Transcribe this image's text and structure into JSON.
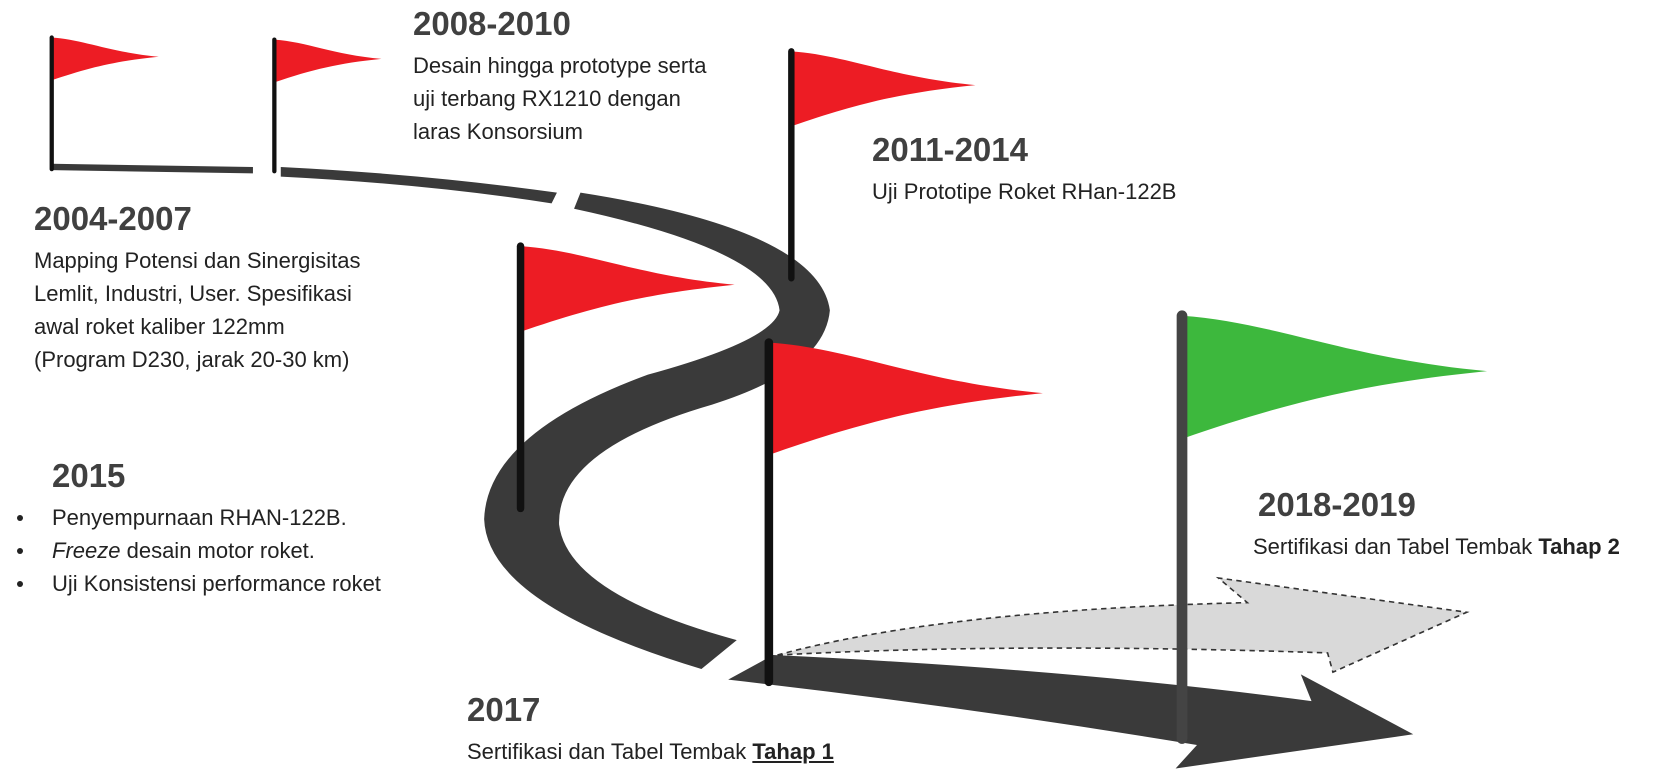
{
  "milestones": [
    {
      "period": "2004-2007",
      "description": [
        "Mapping Potensi dan Sinergisitas",
        "Lemlit, Industri, User. Spesifikasi",
        "awal roket  kaliber 122mm",
        "(Program D230, jarak 20-30 km)"
      ]
    },
    {
      "period": "2008-2010",
      "description": [
        "Desain hingga prototype serta",
        "uji terbang RX1210 dengan",
        "laras Konsorsium"
      ]
    },
    {
      "period": "2011-2014",
      "description": [
        "Uji Prototipe Roket RHan-122B"
      ]
    },
    {
      "period": "2015",
      "bullets": [
        {
          "text": "Penyempurnaan RHAN-122B."
        },
        {
          "emphasis": "Freeze",
          "text": " desain motor roket."
        },
        {
          "text": "Uji Konsistensi performance roket"
        }
      ]
    },
    {
      "period": "2017",
      "description": "Sertifikasi dan Tabel Tembak",
      "stage": "Tahap 1"
    },
    {
      "period": "2018-2019",
      "description": "Sertifikasi dan Tabel Tembak",
      "stage": "Tahap 2"
    }
  ]
}
